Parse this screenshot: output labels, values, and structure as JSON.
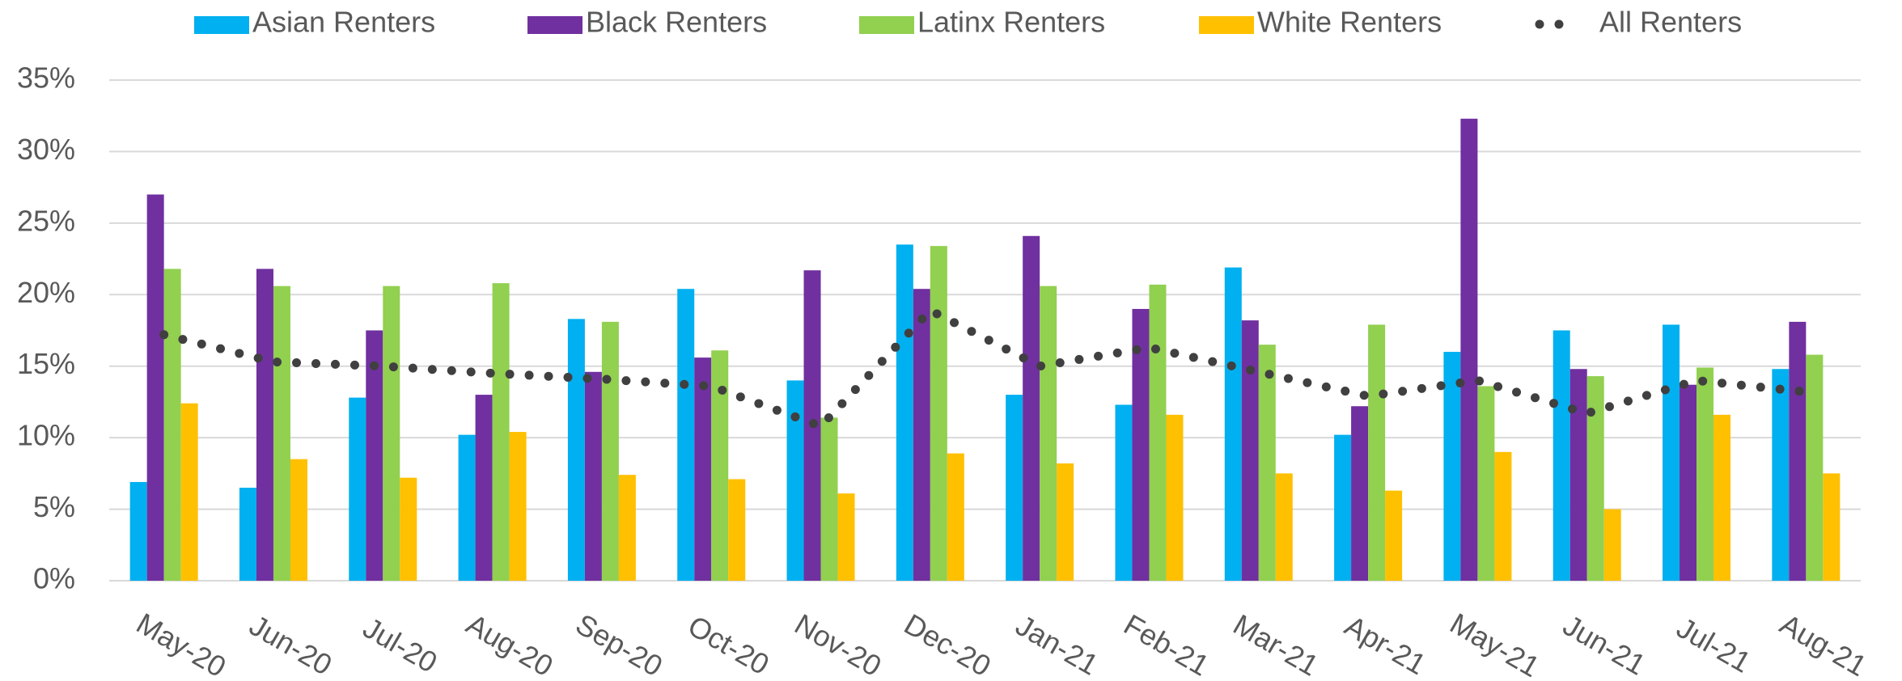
{
  "chart_data": {
    "type": "bar",
    "categories": [
      "May-20",
      "Jun-20",
      "Jul-20",
      "Aug-20",
      "Sep-20",
      "Oct-20",
      "Nov-20",
      "Dec-20",
      "Jan-21",
      "Feb-21",
      "Mar-21",
      "Apr-21",
      "May-21",
      "Jun-21",
      "Jul-21",
      "Aug-21"
    ],
    "series": [
      {
        "name": "Asian Renters",
        "color": "#00b0f0",
        "values": [
          6.9,
          6.5,
          12.8,
          10.2,
          18.3,
          20.4,
          14.0,
          23.5,
          13.0,
          12.3,
          21.9,
          10.2,
          16.0,
          17.5,
          17.9,
          14.8
        ]
      },
      {
        "name": "Black Renters",
        "color": "#7030a0",
        "values": [
          27.0,
          21.8,
          17.5,
          13.0,
          14.6,
          15.6,
          21.7,
          20.4,
          24.1,
          19.0,
          18.2,
          12.2,
          32.3,
          14.8,
          13.7,
          18.1
        ]
      },
      {
        "name": "Latinx Renters",
        "color": "#92d050",
        "values": [
          21.8,
          20.6,
          20.6,
          20.8,
          18.1,
          16.1,
          11.4,
          23.4,
          20.6,
          20.7,
          16.5,
          17.9,
          13.6,
          14.3,
          14.9,
          15.8
        ]
      },
      {
        "name": "White Renters",
        "color": "#ffc000",
        "values": [
          12.4,
          8.5,
          7.2,
          10.4,
          7.4,
          7.1,
          6.1,
          8.9,
          8.2,
          11.6,
          7.5,
          6.3,
          9.0,
          5.0,
          11.6,
          7.5
        ]
      },
      {
        "name": "All Renters",
        "color": "#404040",
        "type": "line",
        "values": [
          17.2,
          15.3,
          15.0,
          14.5,
          14.1,
          13.6,
          10.8,
          18.9,
          15.0,
          16.3,
          14.6,
          12.9,
          14.0,
          11.7,
          14.0,
          13.2
        ]
      }
    ],
    "ylim": [
      0,
      35
    ],
    "yticks": [
      {
        "value": 0,
        "label": "0%"
      },
      {
        "value": 5,
        "label": "5%"
      },
      {
        "value": 10,
        "label": "10%"
      },
      {
        "value": 15,
        "label": "15%"
      },
      {
        "value": 20,
        "label": "20%"
      },
      {
        "value": 25,
        "label": "25%"
      },
      {
        "value": 30,
        "label": "30%"
      },
      {
        "value": 35,
        "label": "35%"
      }
    ],
    "grid": true,
    "legend": "top"
  }
}
